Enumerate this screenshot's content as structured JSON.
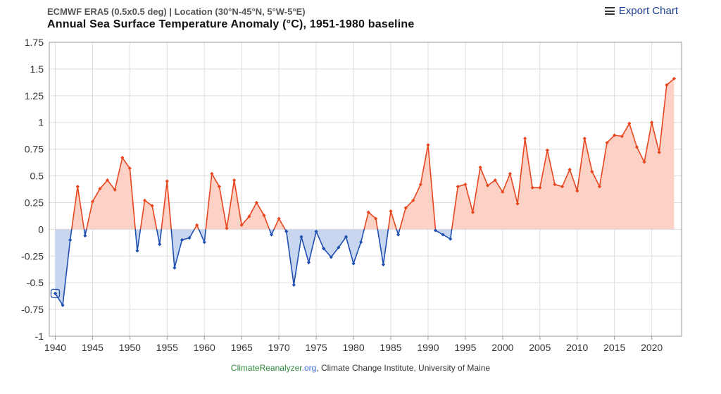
{
  "header": {
    "subtitle": "ECMWF ERA5 (0.5x0.5 deg) | Location (30°N-45°N, 5°W-5°E)",
    "title": "Annual Sea Surface Temperature Anomaly (°C), 1951-1980 baseline",
    "export_label": "Export Chart"
  },
  "footer": {
    "credit_site": "ClimateReanalyzer",
    "credit_tld": ".org",
    "credit_rest": ", Climate Change Institute, University of Maine"
  },
  "chart_data": {
    "type": "area",
    "title": "Annual Sea Surface Temperature Anomaly (°C), 1951-1980 baseline",
    "xlabel": "",
    "ylabel": "",
    "xlim": [
      1940,
      2023
    ],
    "ylim": [
      -1,
      1.75
    ],
    "x_ticks": [
      "1940",
      "1945",
      "1950",
      "1955",
      "1960",
      "1965",
      "1970",
      "1975",
      "1980",
      "1985",
      "1990",
      "1995",
      "2000",
      "2005",
      "2010",
      "2015",
      "2020"
    ],
    "y_ticks": [
      "1.75",
      "1.5",
      "1.25",
      "1",
      "0.75",
      "0.5",
      "0.25",
      "0",
      "-0.25",
      "-0.5",
      "-0.75",
      "-1"
    ],
    "grid": true,
    "positive_color": "#e8461f",
    "positive_fill": "#fcd2c6",
    "negative_color": "#1f4fb0",
    "negative_fill": "#c9d6f0",
    "x": [
      1940,
      1941,
      1942,
      1943,
      1944,
      1945,
      1946,
      1947,
      1948,
      1949,
      1950,
      1951,
      1952,
      1953,
      1954,
      1955,
      1956,
      1957,
      1958,
      1959,
      1960,
      1961,
      1962,
      1963,
      1964,
      1965,
      1966,
      1967,
      1968,
      1969,
      1970,
      1971,
      1972,
      1973,
      1974,
      1975,
      1976,
      1977,
      1978,
      1979,
      1980,
      1981,
      1982,
      1983,
      1984,
      1985,
      1986,
      1987,
      1988,
      1989,
      1990,
      1991,
      1992,
      1993,
      1994,
      1995,
      1996,
      1997,
      1998,
      1999,
      2000,
      2001,
      2002,
      2003,
      2004,
      2005,
      2006,
      2007,
      2008,
      2009,
      2010,
      2011,
      2012,
      2013,
      2014,
      2015,
      2016,
      2017,
      2018,
      2019,
      2020,
      2021,
      2022,
      2023
    ],
    "values": [
      -0.6,
      -0.71,
      -0.1,
      0.4,
      -0.06,
      0.26,
      0.38,
      0.46,
      0.37,
      0.67,
      0.57,
      -0.2,
      0.27,
      0.22,
      -0.14,
      0.45,
      -0.36,
      -0.1,
      -0.08,
      0.04,
      -0.12,
      0.52,
      0.4,
      0.01,
      0.46,
      0.04,
      0.12,
      0.25,
      0.13,
      -0.05,
      0.1,
      -0.02,
      -0.52,
      -0.07,
      -0.31,
      -0.02,
      -0.18,
      -0.26,
      -0.17,
      -0.07,
      -0.32,
      -0.12,
      0.16,
      0.1,
      -0.33,
      0.17,
      -0.05,
      0.2,
      0.27,
      0.42,
      0.79,
      -0.01,
      -0.05,
      -0.09,
      0.4,
      0.42,
      0.16,
      0.58,
      0.41,
      0.46,
      0.35,
      0.52,
      0.24,
      0.85,
      0.39,
      0.39,
      0.74,
      0.42,
      0.4,
      0.56,
      0.36,
      0.85,
      0.54,
      0.4,
      0.81,
      0.88,
      0.87,
      0.99,
      0.77,
      0.63,
      1.0,
      0.72,
      1.35,
      1.41
    ]
  }
}
